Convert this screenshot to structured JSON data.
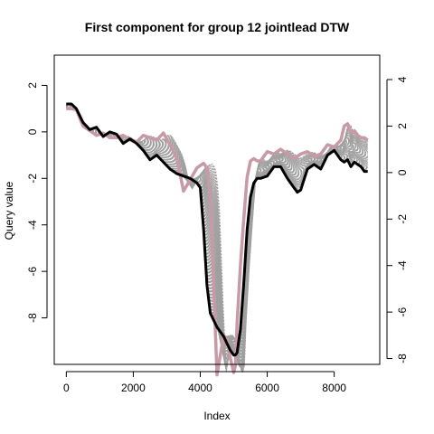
{
  "chart_data": {
    "type": "line",
    "title": "First component for group 12 jointlead DTW",
    "xlabel": "Index",
    "ylabel": "Query value",
    "xlim": [
      -360,
      9360
    ],
    "ylim_left": [
      -10.0,
      3.3
    ],
    "ylim_right": [
      -8.25,
      5.05
    ],
    "x_ticks": [
      0,
      2000,
      4000,
      6000,
      8000
    ],
    "x_tick_labels": [
      "0",
      "2000",
      "4000",
      "6000",
      "8000"
    ],
    "y_ticks_left": [
      2,
      0,
      -2,
      -4,
      -6,
      -8
    ],
    "y_tick_labels_left": [
      "2",
      "0",
      "-2",
      "-4",
      "-6",
      "-8"
    ],
    "y_ticks_right": [
      4,
      2,
      0,
      -2,
      -4,
      -6,
      -8
    ],
    "y_tick_labels_right": [
      "4",
      "2",
      "0",
      "-2",
      "-4",
      "-6",
      "-8"
    ],
    "grid": false,
    "legend": "none",
    "series": [
      {
        "role": "query",
        "color": "#000000",
        "x": [
          0,
          150,
          300,
          500,
          700,
          900,
          1100,
          1300,
          1500,
          1700,
          1900,
          2100,
          2300,
          2500,
          2700,
          2900,
          3100,
          3300,
          3500,
          3700,
          3900,
          4000,
          4100,
          4200,
          4300,
          4500,
          4700,
          4800,
          4900,
          5000,
          5050,
          5100,
          5200,
          5300,
          5400,
          5500,
          5600,
          5700,
          5800,
          6000,
          6200,
          6400,
          6600,
          6800,
          6900,
          7000,
          7200,
          7400,
          7600,
          7800,
          8000,
          8200,
          8300,
          8400,
          8500,
          8600,
          8700,
          8800,
          8900,
          9000
        ],
        "y": [
          1.2,
          1.2,
          1.0,
          0.4,
          0.1,
          0.2,
          -0.2,
          0.0,
          -0.1,
          -0.5,
          -0.3,
          -0.5,
          -0.8,
          -1.2,
          -1.0,
          -1.3,
          -1.6,
          -1.8,
          -1.9,
          -2.0,
          -2.2,
          -2.4,
          -4.2,
          -6.6,
          -7.8,
          -8.4,
          -8.8,
          -9.1,
          -9.4,
          -9.6,
          -9.6,
          -9.5,
          -8.5,
          -6.5,
          -4.2,
          -2.8,
          -2.2,
          -2.0,
          -2.0,
          -1.9,
          -1.5,
          -1.5,
          -2.0,
          -2.4,
          -2.6,
          -2.5,
          -1.6,
          -1.4,
          -1.6,
          -1.0,
          -0.8,
          -1.2,
          -1.3,
          -1.2,
          -1.5,
          -1.3,
          -1.4,
          -1.5,
          -1.7,
          -1.7
        ]
      },
      {
        "role": "reference",
        "color": "#c89aa6",
        "x": [
          0,
          150,
          300,
          500,
          700,
          900,
          1100,
          1300,
          1500,
          1700,
          1900,
          2100,
          2300,
          2500,
          2700,
          2900,
          3100,
          3300,
          3500,
          3700,
          3900,
          4000,
          4100,
          4200,
          4300,
          4500,
          4700,
          4800,
          4900,
          5000,
          5050,
          5100,
          5200,
          5300,
          5400,
          5500,
          5600,
          5700,
          5800,
          6000,
          6200,
          6400,
          6600,
          6800,
          6900,
          7000,
          7200,
          7400,
          7600,
          7800,
          8000,
          8200,
          8300,
          8400,
          8500,
          8600,
          8700,
          8800,
          8900,
          9000
        ],
        "y": [
          2.75,
          2.75,
          2.7,
          2.0,
          1.8,
          1.6,
          1.7,
          1.5,
          1.5,
          1.6,
          1.4,
          1.3,
          1.6,
          1.5,
          1.4,
          1.7,
          1.2,
          0.6,
          -0.8,
          -0.3,
          0.2,
          0.3,
          0.4,
          0.2,
          -1.0,
          -8.7,
          -7.0,
          -7.2,
          -8.0,
          -8.6,
          -8.3,
          -6.5,
          -4.0,
          -2.0,
          -0.2,
          0.5,
          0.6,
          0.5,
          0.5,
          0.9,
          0.8,
          1.0,
          0.8,
          0.6,
          0.7,
          0.8,
          0.9,
          0.7,
          0.8,
          1.2,
          1.1,
          1.4,
          2.0,
          2.1,
          1.7,
          1.8,
          1.6,
          1.5,
          1.5,
          1.4
        ]
      }
    ],
    "dtw_alignment_lines": {
      "color": "#a0a0a0",
      "count": 60,
      "style": "dotted"
    }
  }
}
